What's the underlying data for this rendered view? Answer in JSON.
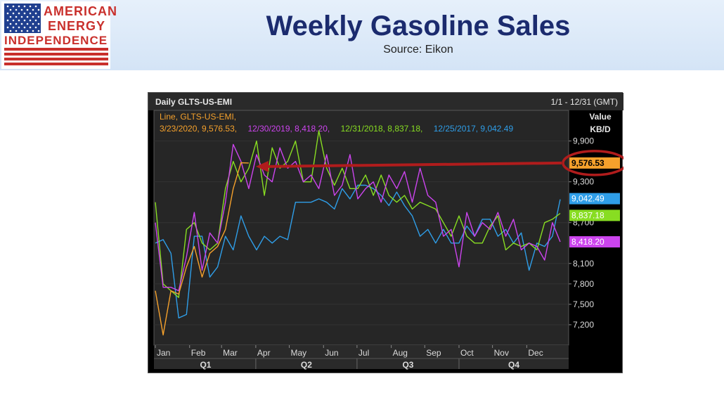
{
  "header": {
    "logo": {
      "line1": "AMERICAN",
      "line2": "ENERGY",
      "line3": "INDEPENDENCE"
    },
    "title": "Weekly Gasoline Sales",
    "subtitle": "Source: Eikon"
  },
  "colors": {
    "accent_title": "#1b2b6e",
    "logo_red": "#c9302c",
    "series_2020": "#f5a12c",
    "series_2019": "#cc44ee",
    "series_2018": "#88dd22",
    "series_2017": "#2f9ee8",
    "arrow": "#b01c1c"
  },
  "chart_data": {
    "type": "line",
    "panel_title": "Daily GLTS-US-EMI",
    "date_range": "1/1 - 12/31 (GMT)",
    "legend_header": "Line, GLTS-US-EMI,",
    "axis_title_line1": "Value",
    "axis_title_line2": "KB/D",
    "ylim": [
      6900,
      10350
    ],
    "y_ticks": [
      {
        "value": 9900,
        "label": "9,900"
      },
      {
        "value": 9300,
        "label": "9,300"
      },
      {
        "value": 8700,
        "label": "8,700"
      },
      {
        "value": 8100,
        "label": "8,100"
      },
      {
        "value": 7800,
        "label": "7,800"
      },
      {
        "value": 7500,
        "label": "7,500"
      },
      {
        "value": 7200,
        "label": "7,200"
      }
    ],
    "months": [
      "Jan",
      "Feb",
      "Mar",
      "Apr",
      "May",
      "Jun",
      "Jul",
      "Aug",
      "Sep",
      "Oct",
      "Nov",
      "Dec"
    ],
    "quarters": [
      "Q1",
      "Q2",
      "Q3",
      "Q4"
    ],
    "series": [
      {
        "name": "3/23/2020",
        "legend_label": "3/23/2020, 9,576.53,",
        "last_value": 9576.53,
        "last_label": "9,576.53",
        "color": "#f5a12c",
        "weeks": [
          1,
          2,
          3,
          4,
          5,
          6,
          7,
          8,
          9,
          10,
          11,
          12,
          13
        ],
        "values": [
          7700,
          7050,
          7700,
          7650,
          8050,
          8350,
          7900,
          8250,
          8350,
          8600,
          9200,
          9580,
          9576.53
        ]
      },
      {
        "name": "12/30/2019",
        "legend_label": "12/30/2019, 8,418.20,",
        "last_value": 8418.2,
        "last_label": "8,418.20",
        "color": "#cc44ee",
        "weeks": [
          1,
          2,
          3,
          4,
          5,
          6,
          7,
          8,
          9,
          10,
          11,
          12,
          13,
          14,
          15,
          16,
          17,
          18,
          19,
          20,
          21,
          22,
          23,
          24,
          25,
          26,
          27,
          28,
          29,
          30,
          31,
          32,
          33,
          34,
          35,
          36,
          37,
          38,
          39,
          40,
          41,
          42,
          43,
          44,
          45,
          46,
          47,
          48,
          49,
          50,
          51,
          52,
          53
        ],
        "values": [
          8700,
          7750,
          7750,
          7700,
          8200,
          8850,
          8000,
          8550,
          8400,
          9000,
          9850,
          9600,
          9200,
          9700,
          9400,
          9300,
          9800,
          9500,
          9600,
          9300,
          9400,
          9200,
          9700,
          9100,
          9250,
          9700,
          9050,
          9200,
          9300,
          9000,
          9400,
          9200,
          9450,
          9000,
          9500,
          9100,
          9000,
          8500,
          8600,
          8050,
          8850,
          8500,
          8700,
          8600,
          8850,
          8500,
          8750,
          8300,
          8400,
          8350,
          8150,
          8700,
          8418.2
        ]
      },
      {
        "name": "12/31/2018",
        "legend_label": "12/31/2018, 8,837.18,",
        "last_value": 8837.18,
        "last_label": "8,837.18",
        "color": "#88dd22",
        "weeks": [
          1,
          2,
          3,
          4,
          5,
          6,
          7,
          8,
          9,
          10,
          11,
          12,
          13,
          14,
          15,
          16,
          17,
          18,
          19,
          20,
          21,
          22,
          23,
          24,
          25,
          26,
          27,
          28,
          29,
          30,
          31,
          32,
          33,
          34,
          35,
          36,
          37,
          38,
          39,
          40,
          41,
          42,
          43,
          44,
          45,
          46,
          47,
          48,
          49,
          50,
          51,
          52,
          53
        ],
        "values": [
          9000,
          7800,
          7700,
          7600,
          8600,
          8700,
          8400,
          8300,
          8400,
          9200,
          9600,
          9300,
          9500,
          9900,
          9100,
          9800,
          9500,
          9600,
          9900,
          9300,
          9300,
          10050,
          9500,
          9250,
          9500,
          9200,
          9200,
          9400,
          9100,
          9400,
          9100,
          9000,
          9100,
          8900,
          9000,
          8950,
          8900,
          8700,
          8500,
          8800,
          8500,
          8400,
          8400,
          8650,
          8800,
          8300,
          8400,
          8350,
          8400,
          8300,
          8700,
          8750,
          8837.18
        ]
      },
      {
        "name": "12/25/2017",
        "legend_label": "12/25/2017, 9,042.49",
        "last_value": 9042.49,
        "last_label": "9,042.49",
        "color": "#2f9ee8",
        "weeks": [
          1,
          2,
          3,
          4,
          5,
          6,
          7,
          8,
          9,
          10,
          11,
          12,
          13,
          14,
          15,
          16,
          17,
          18,
          19,
          20,
          21,
          22,
          23,
          24,
          25,
          26,
          27,
          28,
          29,
          30,
          31,
          32,
          33,
          34,
          35,
          36,
          37,
          38,
          39,
          40,
          41,
          42,
          43,
          44,
          45,
          46,
          47,
          48,
          49,
          50,
          51,
          52,
          53
        ],
        "values": [
          8400,
          8450,
          8250,
          7300,
          7350,
          8500,
          8500,
          7900,
          8050,
          8500,
          8300,
          8800,
          8500,
          8300,
          8500,
          8400,
          8500,
          8450,
          9000,
          9000,
          9000,
          9050,
          9000,
          8900,
          9200,
          9050,
          9250,
          9250,
          9200,
          9100,
          8950,
          9150,
          8950,
          8800,
          8500,
          8600,
          8400,
          8600,
          8400,
          8400,
          8650,
          8500,
          8750,
          8750,
          8500,
          8600,
          8400,
          8550,
          8000,
          8400,
          8350,
          8500,
          9042.49
        ]
      }
    ],
    "highlight_value_label": "9,576.53",
    "annotation": "arrow from circled 9,576.53 label to the 3/23/2020 line end"
  }
}
